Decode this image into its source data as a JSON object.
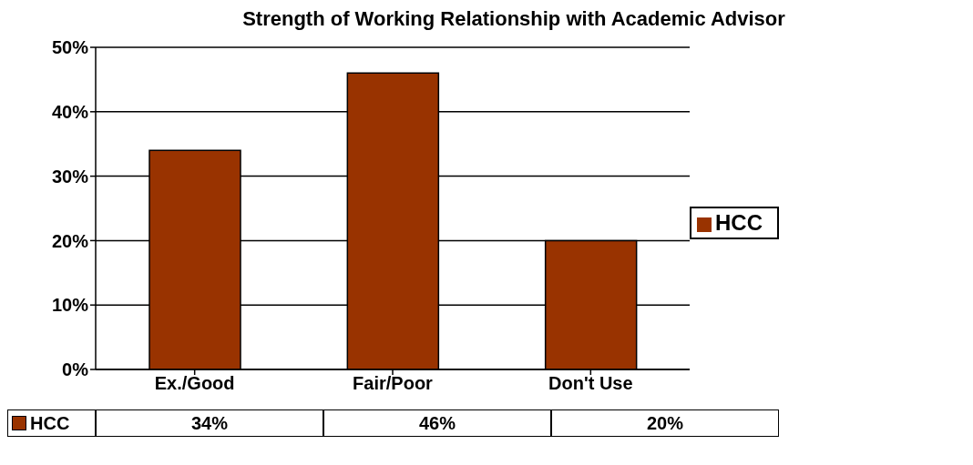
{
  "chart_data": {
    "type": "bar",
    "title": "Strength of Working Relationship with Academic Advisor",
    "categories": [
      "Ex./Good",
      "Fair/Poor",
      "Don't Use"
    ],
    "series": [
      {
        "name": "HCC",
        "color": "#993300",
        "values": [
          34,
          46,
          20
        ],
        "value_labels": [
          "34%",
          "46%",
          "20%"
        ]
      }
    ],
    "ylim": [
      0,
      50
    ],
    "yticks": [
      {
        "value": 0,
        "label": "0%"
      },
      {
        "value": 10,
        "label": "10%"
      },
      {
        "value": 20,
        "label": "20%"
      },
      {
        "value": 30,
        "label": "30%"
      },
      {
        "value": 40,
        "label": "40%"
      },
      {
        "value": 50,
        "label": "50%"
      }
    ],
    "grid": "y",
    "legend": "right"
  }
}
